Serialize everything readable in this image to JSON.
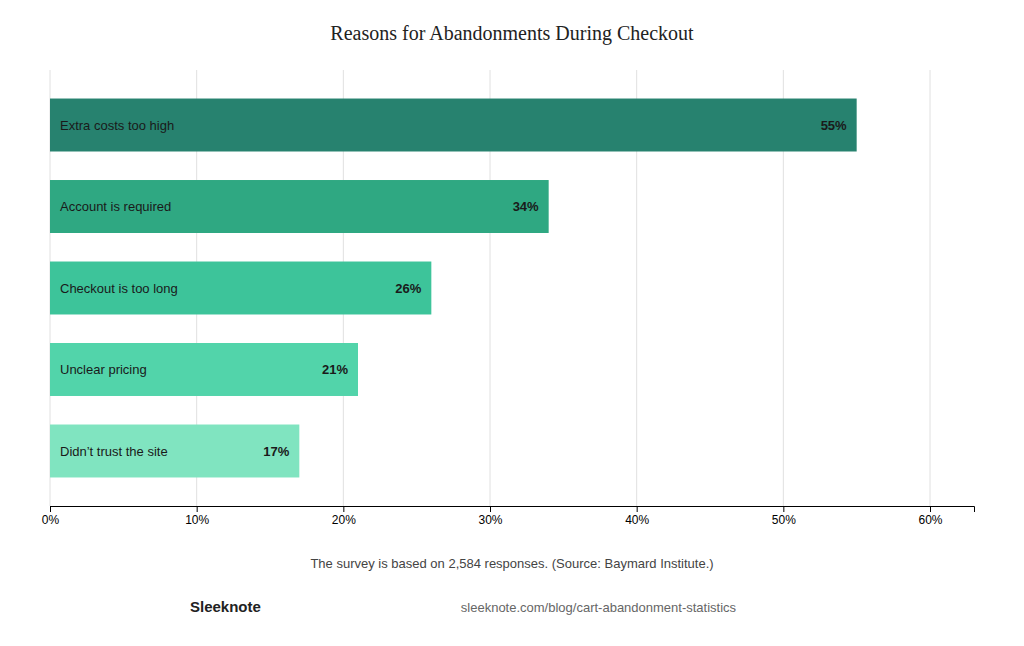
{
  "chart_data": {
    "type": "bar",
    "orientation": "horizontal",
    "title": "Reasons for Abandonments During Checkout",
    "categories": [
      "Extra costs too high",
      "Account is required",
      "Checkout is too long",
      "Unclear pricing",
      "Didn’t trust the site"
    ],
    "values": [
      55,
      34,
      26,
      21,
      17
    ],
    "value_labels": [
      "55%",
      "34%",
      "26%",
      "21%",
      "17%"
    ],
    "data_labels": true,
    "colors": [
      "#27826F",
      "#2FA882",
      "#3DC49A",
      "#52D4AA",
      "#80E4C0"
    ],
    "xlim": [
      0,
      63
    ],
    "xticks": [
      {
        "value": 0,
        "label": "0%"
      },
      {
        "value": 10,
        "label": "10%"
      },
      {
        "value": 20,
        "label": "20%"
      },
      {
        "value": 30,
        "label": "30%"
      },
      {
        "value": 40,
        "label": "40%"
      },
      {
        "value": 50,
        "label": "50%"
      },
      {
        "value": 60,
        "label": "60%"
      }
    ],
    "grid": true,
    "tick_labels": "x",
    "annotations": [
      "The survey is based on 2,584 responses. (Source: Baymard Institute.)",
      "Sleeknote",
      "sleeknote.com/blog/cart-abandonment-statistics"
    ]
  }
}
